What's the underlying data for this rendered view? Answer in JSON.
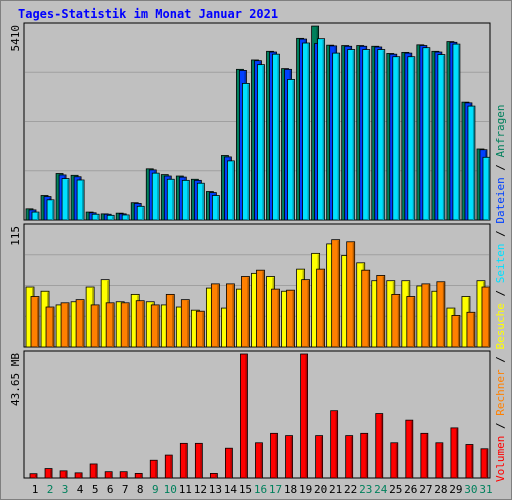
{
  "title": "Tages-Statistik im Monat Januar 2021",
  "colors": {
    "background": "#c0c0c0",
    "title": "#0000ff",
    "grid": "#a0a0a0",
    "anfragen": "#00805c",
    "dateien": "#0040ff",
    "seiten": "#00e0ff",
    "besuche": "#ffff00",
    "rechner": "#ff8000",
    "volumen": "#ff0000",
    "weekend_label": "#00805c",
    "weekday_label": "#000000"
  },
  "chart_data": [
    {
      "type": "bar",
      "panel": "anfragen-dateien-seiten",
      "ymax_label": "5410",
      "ylim": [
        0,
        5410
      ],
      "categories": [
        "1",
        "2",
        "3",
        "4",
        "5",
        "6",
        "7",
        "8",
        "9",
        "10",
        "11",
        "12",
        "13",
        "14",
        "15",
        "16",
        "17",
        "18",
        "19",
        "20",
        "21",
        "22",
        "23",
        "24",
        "25",
        "26",
        "27",
        "28",
        "29",
        "30",
        "31"
      ],
      "series": [
        {
          "name": "Anfragen",
          "color": "#00805c",
          "values": [
            310,
            680,
            1290,
            1240,
            220,
            170,
            190,
            480,
            1420,
            1260,
            1220,
            1130,
            790,
            1790,
            4180,
            4440,
            4680,
            4200,
            5040,
            5380,
            4850,
            4840,
            4840,
            4820,
            4620,
            4650,
            4860,
            4680,
            4950,
            3270,
            1970
          ]
        },
        {
          "name": "Dateien",
          "color": "#0040ff",
          "values": [
            280,
            650,
            1250,
            1200,
            200,
            160,
            170,
            460,
            1390,
            1220,
            1190,
            1100,
            760,
            1750,
            4150,
            4420,
            4660,
            4180,
            5020,
            4900,
            4830,
            4820,
            4820,
            4800,
            4600,
            4630,
            4840,
            4660,
            4930,
            3250,
            1950
          ]
        },
        {
          "name": "Seiten",
          "color": "#00e0ff",
          "values": [
            220,
            560,
            1150,
            1110,
            160,
            130,
            140,
            380,
            1300,
            1130,
            1100,
            1020,
            680,
            1640,
            3790,
            4310,
            4600,
            3900,
            4910,
            5030,
            4630,
            4730,
            4730,
            4730,
            4530,
            4530,
            4780,
            4590,
            4880,
            3160,
            1740
          ]
        }
      ]
    },
    {
      "type": "bar",
      "panel": "besuche-rechner",
      "ymax_label": "115",
      "ylim": [
        0,
        115
      ],
      "categories": [
        "1",
        "2",
        "3",
        "4",
        "5",
        "6",
        "7",
        "8",
        "9",
        "10",
        "11",
        "12",
        "13",
        "14",
        "15",
        "16",
        "17",
        "18",
        "19",
        "20",
        "21",
        "22",
        "23",
        "24",
        "25",
        "26",
        "27",
        "28",
        "29",
        "30",
        "31"
      ],
      "series": [
        {
          "name": "Besuche",
          "color": "#ffff00",
          "values": [
            57,
            53,
            40,
            43,
            57,
            64,
            43,
            50,
            43,
            40,
            38,
            35,
            56,
            37,
            55,
            70,
            67,
            53,
            74,
            89,
            98,
            87,
            80,
            63,
            63,
            63,
            58,
            53,
            37,
            48,
            63
          ]
        },
        {
          "name": "Rechner",
          "color": "#ff8000",
          "values": [
            48,
            38,
            42,
            45,
            40,
            42,
            42,
            44,
            40,
            50,
            45,
            34,
            60,
            60,
            67,
            73,
            55,
            54,
            64,
            74,
            102,
            100,
            73,
            68,
            50,
            48,
            60,
            62,
            30,
            33,
            57
          ]
        }
      ]
    },
    {
      "type": "bar",
      "panel": "volumen",
      "ymax_label": "43.65 MB",
      "ylim": [
        0,
        43.65
      ],
      "categories": [
        "1",
        "2",
        "3",
        "4",
        "5",
        "6",
        "7",
        "8",
        "9",
        "10",
        "11",
        "12",
        "13",
        "14",
        "15",
        "16",
        "17",
        "18",
        "19",
        "20",
        "21",
        "22",
        "23",
        "24",
        "25",
        "26",
        "27",
        "28",
        "29",
        "30",
        "31"
      ],
      "series": [
        {
          "name": "Volumen",
          "color": "#ff0000",
          "values": [
            1.5,
            3.3,
            2.5,
            1.8,
            4.9,
            2.2,
            2.2,
            1.6,
            6.2,
            8.0,
            12.1,
            12.1,
            1.6,
            10.4,
            43.3,
            12.3,
            15.6,
            14.8,
            43.3,
            14.8,
            23.5,
            14.8,
            15.6,
            22.5,
            12.3,
            20.2,
            15.6,
            12.3,
            17.5,
            11.7,
            10.2
          ]
        }
      ]
    }
  ],
  "right_legend": [
    {
      "text": "Volumen",
      "color": "#ff0000"
    },
    {
      "text": " / ",
      "color": "#000000"
    },
    {
      "text": "Rechner",
      "color": "#ff8000"
    },
    {
      "text": " / ",
      "color": "#000000"
    },
    {
      "text": "Besuche",
      "color": "#ffff00"
    },
    {
      "text": " / ",
      "color": "#000000"
    },
    {
      "text": "Seiten",
      "color": "#00e0ff"
    },
    {
      "text": " / ",
      "color": "#000000"
    },
    {
      "text": "Dateien",
      "color": "#0040ff"
    },
    {
      "text": " / ",
      "color": "#000000"
    },
    {
      "text": "Anfragen",
      "color": "#00805c"
    }
  ],
  "weekend_days": [
    "2",
    "3",
    "9",
    "10",
    "16",
    "17",
    "23",
    "24",
    "30",
    "31"
  ]
}
